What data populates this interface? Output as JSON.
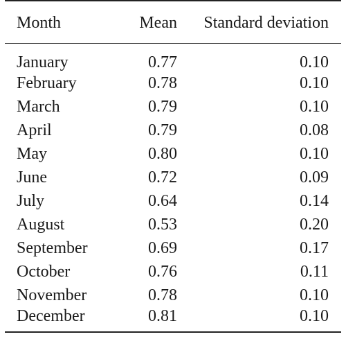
{
  "table": {
    "headers": {
      "month": "Month",
      "mean": "Mean",
      "sd": "Standard deviation"
    },
    "rows": [
      {
        "month": "January",
        "mean": "0.77",
        "sd": "0.10"
      },
      {
        "month": "February",
        "mean": "0.78",
        "sd": "0.10"
      },
      {
        "month": "March",
        "mean": "0.79",
        "sd": "0.10"
      },
      {
        "month": "April",
        "mean": "0.79",
        "sd": "0.08"
      },
      {
        "month": "May",
        "mean": "0.80",
        "sd": "0.10"
      },
      {
        "month": "June",
        "mean": "0.72",
        "sd": "0.09"
      },
      {
        "month": "July",
        "mean": "0.64",
        "sd": "0.14"
      },
      {
        "month": "August",
        "mean": "0.53",
        "sd": "0.20"
      },
      {
        "month": "September",
        "mean": "0.69",
        "sd": "0.17"
      },
      {
        "month": "October",
        "mean": "0.76",
        "sd": "0.11"
      },
      {
        "month": "November",
        "mean": "0.78",
        "sd": "0.10"
      },
      {
        "month": "December",
        "mean": "0.81",
        "sd": "0.10"
      }
    ]
  }
}
